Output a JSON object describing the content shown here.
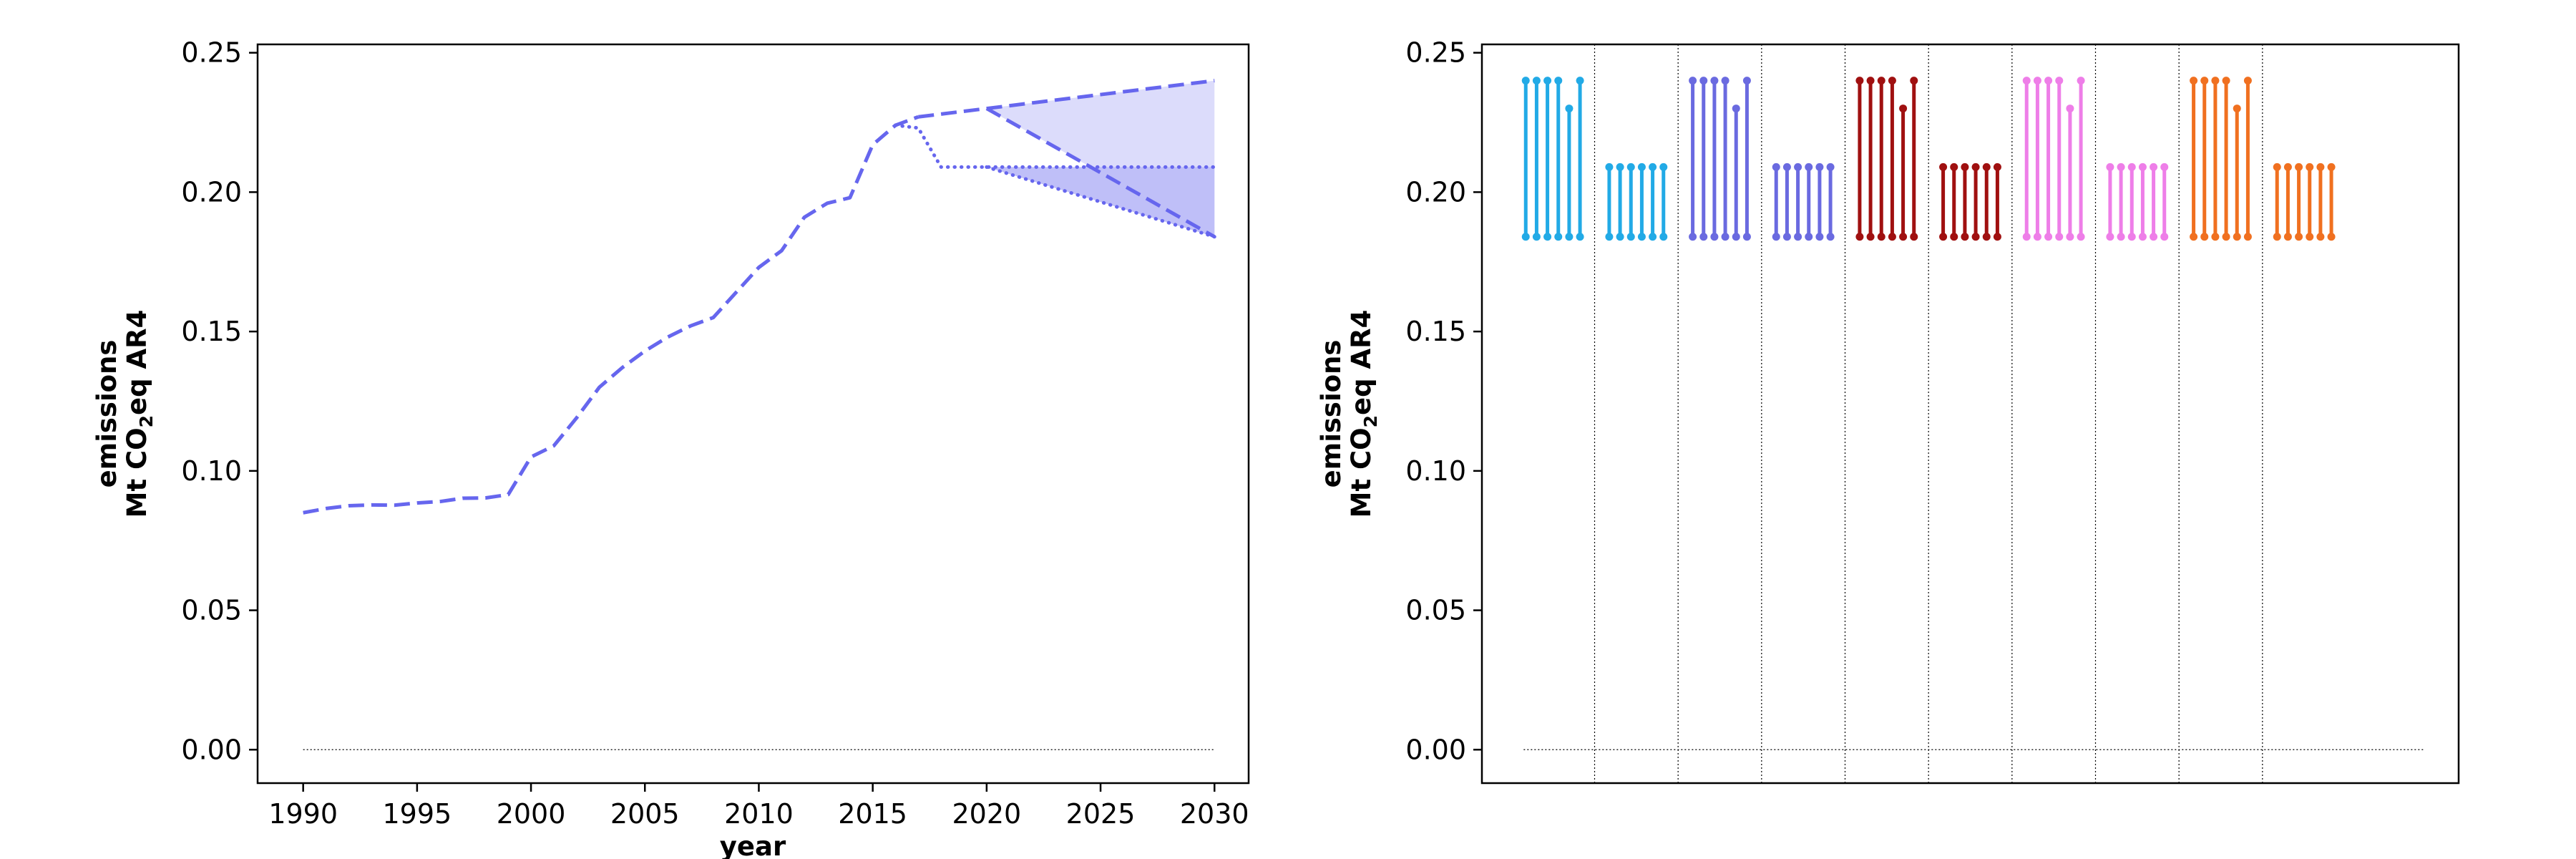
{
  "colors": {
    "series": "#6666ee",
    "band_light": "#dcdcfb",
    "band_dark": "#bfbff8",
    "cyan": "#22aae6",
    "blue": "#6a6ae0",
    "darkred": "#a01010",
    "pink": "#ee7ee8",
    "orange": "#f07020"
  },
  "chart_data": [
    {
      "type": "line",
      "title": "",
      "xlabel": "year",
      "ylabel_line1": "emissions",
      "ylabel_line2_prefix": "Mt CO",
      "ylabel_line2_sub": "2",
      "ylabel_line2_suffix": "eq AR4",
      "xlim": [
        1988,
        2031.5
      ],
      "ylim": [
        -0.012,
        0.253
      ],
      "xticks": [
        1990,
        1995,
        2000,
        2005,
        2010,
        2015,
        2020,
        2025,
        2030
      ],
      "xtick_labels": [
        "1990",
        "1995",
        "2000",
        "2005",
        "2010",
        "2015",
        "2020",
        "2025",
        "2030"
      ],
      "yticks": [
        0.0,
        0.05,
        0.1,
        0.15,
        0.2,
        0.25
      ],
      "ytick_labels": [
        "0.00",
        "0.05",
        "0.10",
        "0.15",
        "0.20",
        "0.25"
      ],
      "grid": false,
      "series": [
        {
          "style": "dashed",
          "x": [
            1990,
            1991,
            1992,
            1993,
            1994,
            1995,
            1996,
            1997,
            1998,
            1999,
            2000,
            2001,
            2002,
            2003,
            2004,
            2005,
            2006,
            2007,
            2008,
            2009,
            2010,
            2011,
            2012,
            2013,
            2014,
            2015,
            2016,
            2017
          ],
          "y": [
            0.085,
            0.0865,
            0.0875,
            0.0878,
            0.0877,
            0.0885,
            0.089,
            0.0902,
            0.0903,
            0.0915,
            0.105,
            0.109,
            0.119,
            0.13,
            0.137,
            0.143,
            0.148,
            0.152,
            0.155,
            0.164,
            0.173,
            0.179,
            0.191,
            0.196,
            0.198,
            0.217,
            0.224,
            0.227
          ]
        },
        {
          "style": "dashed",
          "x": [
            2017,
            2020,
            2030
          ],
          "y": [
            0.227,
            0.23,
            0.24
          ]
        },
        {
          "style": "dashed",
          "x": [
            2020,
            2030
          ],
          "y": [
            0.23,
            0.184
          ]
        },
        {
          "style": "dotted",
          "x": [
            2016,
            2017,
            2018,
            2020,
            2030
          ],
          "y": [
            0.224,
            0.223,
            0.209,
            0.209,
            0.209
          ]
        },
        {
          "style": "dotted",
          "x": [
            2020,
            2030
          ],
          "y": [
            0.209,
            0.184
          ]
        },
        {
          "style": "baseline",
          "x": [
            1990,
            2030
          ],
          "y": [
            0.0,
            0.0
          ]
        }
      ],
      "bands": [
        {
          "shade": "light",
          "x": [
            2020,
            2030
          ],
          "lower": [
            0.23,
            0.184
          ],
          "upper": [
            0.23,
            0.24
          ]
        },
        {
          "shade": "dark",
          "x": [
            2020,
            2030
          ],
          "lower": [
            0.209,
            0.184
          ],
          "upper": [
            0.209,
            0.209
          ]
        }
      ]
    },
    {
      "type": "range-plot",
      "title": "",
      "ylabel_line1": "emissions",
      "ylabel_line2_prefix": "Mt CO",
      "ylabel_line2_sub": "2",
      "ylabel_line2_suffix": "eq AR4",
      "xlim": [
        0,
        11.7
      ],
      "ylim": [
        -0.012,
        0.253
      ],
      "yticks": [
        0.0,
        0.05,
        0.1,
        0.15,
        0.2,
        0.25
      ],
      "ytick_labels": [
        "0.00",
        "0.05",
        "0.10",
        "0.15",
        "0.20",
        "0.25"
      ],
      "group_separators": [
        1.35,
        2.35,
        3.35,
        4.35,
        5.35,
        6.35,
        7.35,
        8.35,
        9.35
      ],
      "baseline": {
        "x": [
          0.5,
          11.3
        ],
        "y": 0.0
      },
      "groups": [
        {
          "color": "cyan",
          "center": 0.85,
          "ranges": [
            [
              0.184,
              0.24
            ],
            [
              0.184,
              0.24
            ],
            [
              0.184,
              0.24
            ],
            [
              0.184,
              0.24
            ],
            [
              0.184,
              0.23
            ],
            [
              0.184,
              0.24
            ]
          ]
        },
        {
          "color": "cyan",
          "center": 1.85,
          "ranges": [
            [
              0.184,
              0.209
            ],
            [
              0.184,
              0.209
            ],
            [
              0.184,
              0.209
            ],
            [
              0.184,
              0.209
            ],
            [
              0.184,
              0.209
            ],
            [
              0.184,
              0.209
            ]
          ]
        },
        {
          "color": "blue",
          "center": 2.85,
          "ranges": [
            [
              0.184,
              0.24
            ],
            [
              0.184,
              0.24
            ],
            [
              0.184,
              0.24
            ],
            [
              0.184,
              0.24
            ],
            [
              0.184,
              0.23
            ],
            [
              0.184,
              0.24
            ]
          ]
        },
        {
          "color": "blue",
          "center": 3.85,
          "ranges": [
            [
              0.184,
              0.209
            ],
            [
              0.184,
              0.209
            ],
            [
              0.184,
              0.209
            ],
            [
              0.184,
              0.209
            ],
            [
              0.184,
              0.209
            ],
            [
              0.184,
              0.209
            ]
          ]
        },
        {
          "color": "darkred",
          "center": 4.85,
          "ranges": [
            [
              0.184,
              0.24
            ],
            [
              0.184,
              0.24
            ],
            [
              0.184,
              0.24
            ],
            [
              0.184,
              0.24
            ],
            [
              0.184,
              0.23
            ],
            [
              0.184,
              0.24
            ]
          ]
        },
        {
          "color": "darkred",
          "center": 5.85,
          "ranges": [
            [
              0.184,
              0.209
            ],
            [
              0.184,
              0.209
            ],
            [
              0.184,
              0.209
            ],
            [
              0.184,
              0.209
            ],
            [
              0.184,
              0.209
            ],
            [
              0.184,
              0.209
            ]
          ]
        },
        {
          "color": "pink",
          "center": 6.85,
          "ranges": [
            [
              0.184,
              0.24
            ],
            [
              0.184,
              0.24
            ],
            [
              0.184,
              0.24
            ],
            [
              0.184,
              0.24
            ],
            [
              0.184,
              0.23
            ],
            [
              0.184,
              0.24
            ]
          ]
        },
        {
          "color": "pink",
          "center": 7.85,
          "ranges": [
            [
              0.184,
              0.209
            ],
            [
              0.184,
              0.209
            ],
            [
              0.184,
              0.209
            ],
            [
              0.184,
              0.209
            ],
            [
              0.184,
              0.209
            ],
            [
              0.184,
              0.209
            ]
          ]
        },
        {
          "color": "orange",
          "center": 8.85,
          "ranges": [
            [
              0.184,
              0.24
            ],
            [
              0.184,
              0.24
            ],
            [
              0.184,
              0.24
            ],
            [
              0.184,
              0.24
            ],
            [
              0.184,
              0.23
            ],
            [
              0.184,
              0.24
            ]
          ]
        },
        {
          "color": "orange",
          "center": 9.85,
          "ranges": [
            [
              0.184,
              0.209
            ],
            [
              0.184,
              0.209
            ],
            [
              0.184,
              0.209
            ],
            [
              0.184,
              0.209
            ],
            [
              0.184,
              0.209
            ],
            [
              0.184,
              0.209
            ]
          ]
        }
      ]
    }
  ]
}
